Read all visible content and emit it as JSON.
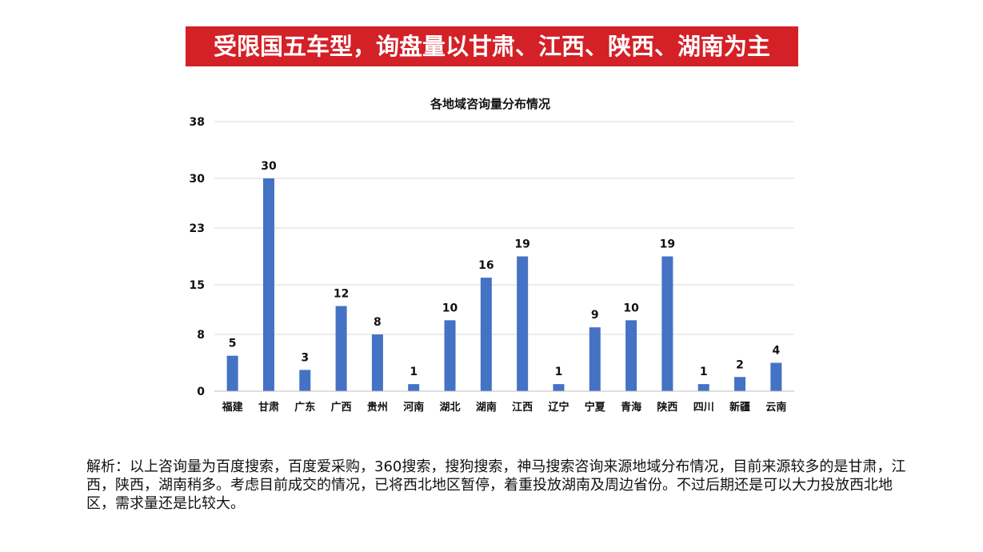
{
  "banner": {
    "title": "受限国五车型，询盘量以甘肃、江西、陕西、湖南为主"
  },
  "chart_data": {
    "type": "bar",
    "title": "各地域咨询量分布情况",
    "xlabel": "",
    "ylabel": "",
    "categories": [
      "福建",
      "甘肃",
      "广东",
      "广西",
      "贵州",
      "河南",
      "湖北",
      "湖南",
      "江西",
      "辽宁",
      "宁夏",
      "青海",
      "陕西",
      "四川",
      "新疆",
      "云南"
    ],
    "values": [
      5,
      30,
      3,
      12,
      8,
      1,
      10,
      16,
      19,
      1,
      9,
      10,
      19,
      1,
      2,
      4
    ],
    "yticks": [
      0,
      8,
      15,
      23,
      30,
      38
    ],
    "ylim": [
      0,
      38
    ],
    "grid": true,
    "legend": "none",
    "bar_color": "#4472c4"
  },
  "analysis": {
    "text": "解析：以上咨询量为百度搜索，百度爱采购，360搜索，搜狗搜索，神马搜索咨询来源地域分布情况，目前来源较多的是甘肃，江西，陕西，湖南稍多。考虑目前成交的情况，已将西北地区暂停，着重投放湖南及周边省份。不过后期还是可以大力投放西北地区，需求量还是比较大。"
  }
}
